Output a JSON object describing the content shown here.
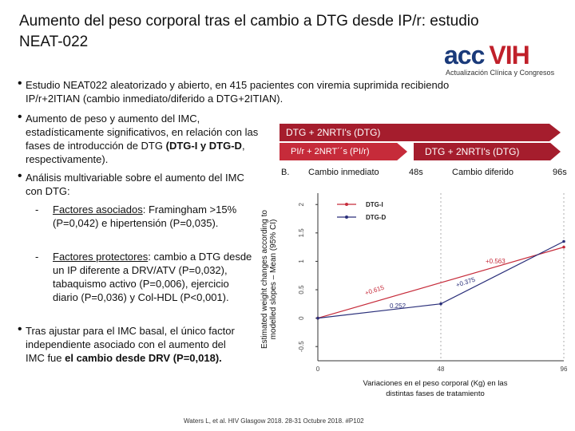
{
  "title": "Aumento del peso corporal tras el cambio a DTG desde IP/r: estudio NEAT-022",
  "logo": {
    "main_a": "acc",
    "main_b": "VIH",
    "sub": "Actualización Clínica y Congresos"
  },
  "bullets": [
    {
      "text": "Estudio NEAT022 aleatorizado y abierto, en 415 pacientes con viremia suprimida recibiendo IP/r+2ITIAN (cambio inmediato/diferido a DTG+2ITIAN)."
    },
    {
      "line1": "Aumento de peso y aumento del IMC, estadísticamente significativos, en relación con las fases de introducción de DTG",
      "bold": "(DTG-I y DTG-D",
      "tail": ", respectivamente)."
    },
    {
      "intro": "Análisis multivariable sobre el aumento del IMC con DTG:",
      "sub1_dash": "-",
      "sub1_label": "Factores asociados",
      "sub1_text": ": Framingham >15% (P=0,042) e hipertensión (P=0,035).",
      "sub2_dash": "-",
      "sub2_label": "Factores protectores",
      "sub2_text": ": cambio a DTG desde un IP diferente a DRV/ATV (P=0,032), tabaquismo activo (P=0,006), ejercicio diario (P=0,036) y Col-HDL (P<0,001)."
    },
    {
      "text": "Tras ajustar para el IMC basal, el único factor independiente asociado con el aumento del IMC fue ",
      "bold": "el cambio desde DRV (P=0,018)."
    }
  ],
  "phase_bands": {
    "top": "DTG + 2NRTI's (DTG)",
    "mid_left": "PI/r + 2NRT´´s (PI/r)",
    "mid_right": "DTG + 2NRTI's (DTG)"
  },
  "phase_labels": {
    "b": "B.",
    "immediate": "Cambio inmediato",
    "deferred": "Cambio diferido",
    "wk48": "48s",
    "wk96": "96s"
  },
  "chart_data": {
    "type": "line",
    "ylabel": "Estimated weight changes according to modelled slopes – Mean (95% CI)",
    "x_ticks": [
      "0",
      "48",
      "96"
    ],
    "y_ticks": [
      "-0.5",
      "0",
      "0.5",
      "1",
      "1.5",
      "2"
    ],
    "ylim": [
      -0.75,
      2.2
    ],
    "xlim": [
      0,
      96
    ],
    "legend": [
      "DTG-I",
      "DTG-D"
    ],
    "series": [
      {
        "name": "DTG-I",
        "color": "#c62b3a",
        "x": [
          0,
          96
        ],
        "y": [
          0,
          1.25
        ]
      },
      {
        "name": "DTG-D",
        "color": "#2a2f7a",
        "x": [
          0,
          48,
          96
        ],
        "y": [
          0,
          0.252,
          1.35
        ]
      }
    ],
    "annotations": [
      "+0.615",
      "0.252",
      "+0.375",
      "+0.563"
    ],
    "caption": "Variaciones en el peso corporal (Kg) en las distintas fases de tratamiento"
  },
  "reference": "Waters L, et al. HIV Glasgow 2018. 28-31 Octubre 2018. #P102"
}
